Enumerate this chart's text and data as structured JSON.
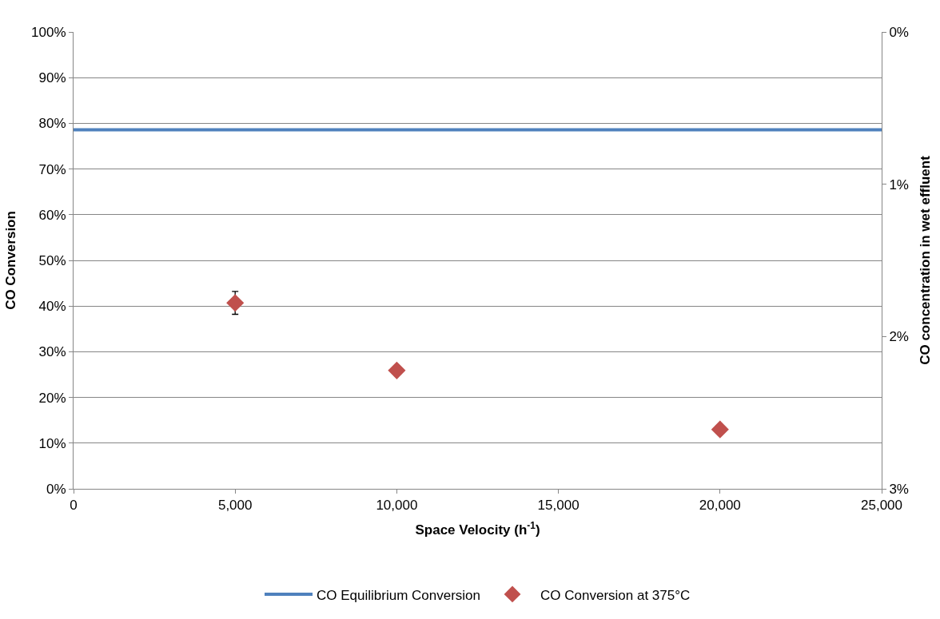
{
  "chart_data": {
    "type": "scatter",
    "xlabel": "Space Velocity (h$^{-1}$)",
    "ylabel": "CO Conversion",
    "y2label": "CO concentration in wet effluent",
    "xlim": [
      0,
      25000
    ],
    "xticks": [
      0,
      {
        "value": 5000,
        "label": "5,000"
      },
      {
        "value": 10000,
        "label": "10,000"
      },
      {
        "value": 15000,
        "label": "15,000"
      },
      {
        "value": 20000,
        "label": "20,000"
      },
      {
        "value": 25000,
        "label": "25,000"
      }
    ],
    "ylim": [
      0,
      100
    ],
    "yticks": [
      {
        "value": 0,
        "label": "0%"
      },
      {
        "value": 10,
        "label": "10%"
      },
      {
        "value": 20,
        "label": "20%"
      },
      {
        "value": 30,
        "label": "30%"
      },
      {
        "value": 40,
        "label": "40%"
      },
      {
        "value": 50,
        "label": "50%"
      },
      {
        "value": 60,
        "label": "60%"
      },
      {
        "value": 70,
        "label": "70%"
      },
      {
        "value": 80,
        "label": "80%"
      },
      {
        "value": 90,
        "label": "90%"
      },
      {
        "value": 100,
        "label": "100%"
      }
    ],
    "y2lim": [
      3,
      0
    ],
    "y2ticks": [
      {
        "value": 0,
        "label": "0%"
      },
      {
        "value": 1,
        "label": "1%"
      },
      {
        "value": 2,
        "label": "2%"
      },
      {
        "value": 3,
        "label": "3%"
      }
    ],
    "grid": "y",
    "legend": "bottom",
    "series": [
      {
        "name": "CO Equilibrium Conversion",
        "type": "line",
        "color": "#4f81bd",
        "x": [
          0,
          25000
        ],
        "values": [
          78.6,
          78.6
        ],
        "marker": "none",
        "line_style": "solid"
      },
      {
        "name": "CO Conversion at 375°C",
        "color": "#c0504d",
        "x": [
          5000,
          10000,
          20000
        ],
        "values": [
          40.7,
          25.9,
          13.0
        ],
        "marker": "diamond",
        "errors": [
          [
            38.2,
            43.2
          ],
          null,
          null
        ]
      }
    ]
  }
}
